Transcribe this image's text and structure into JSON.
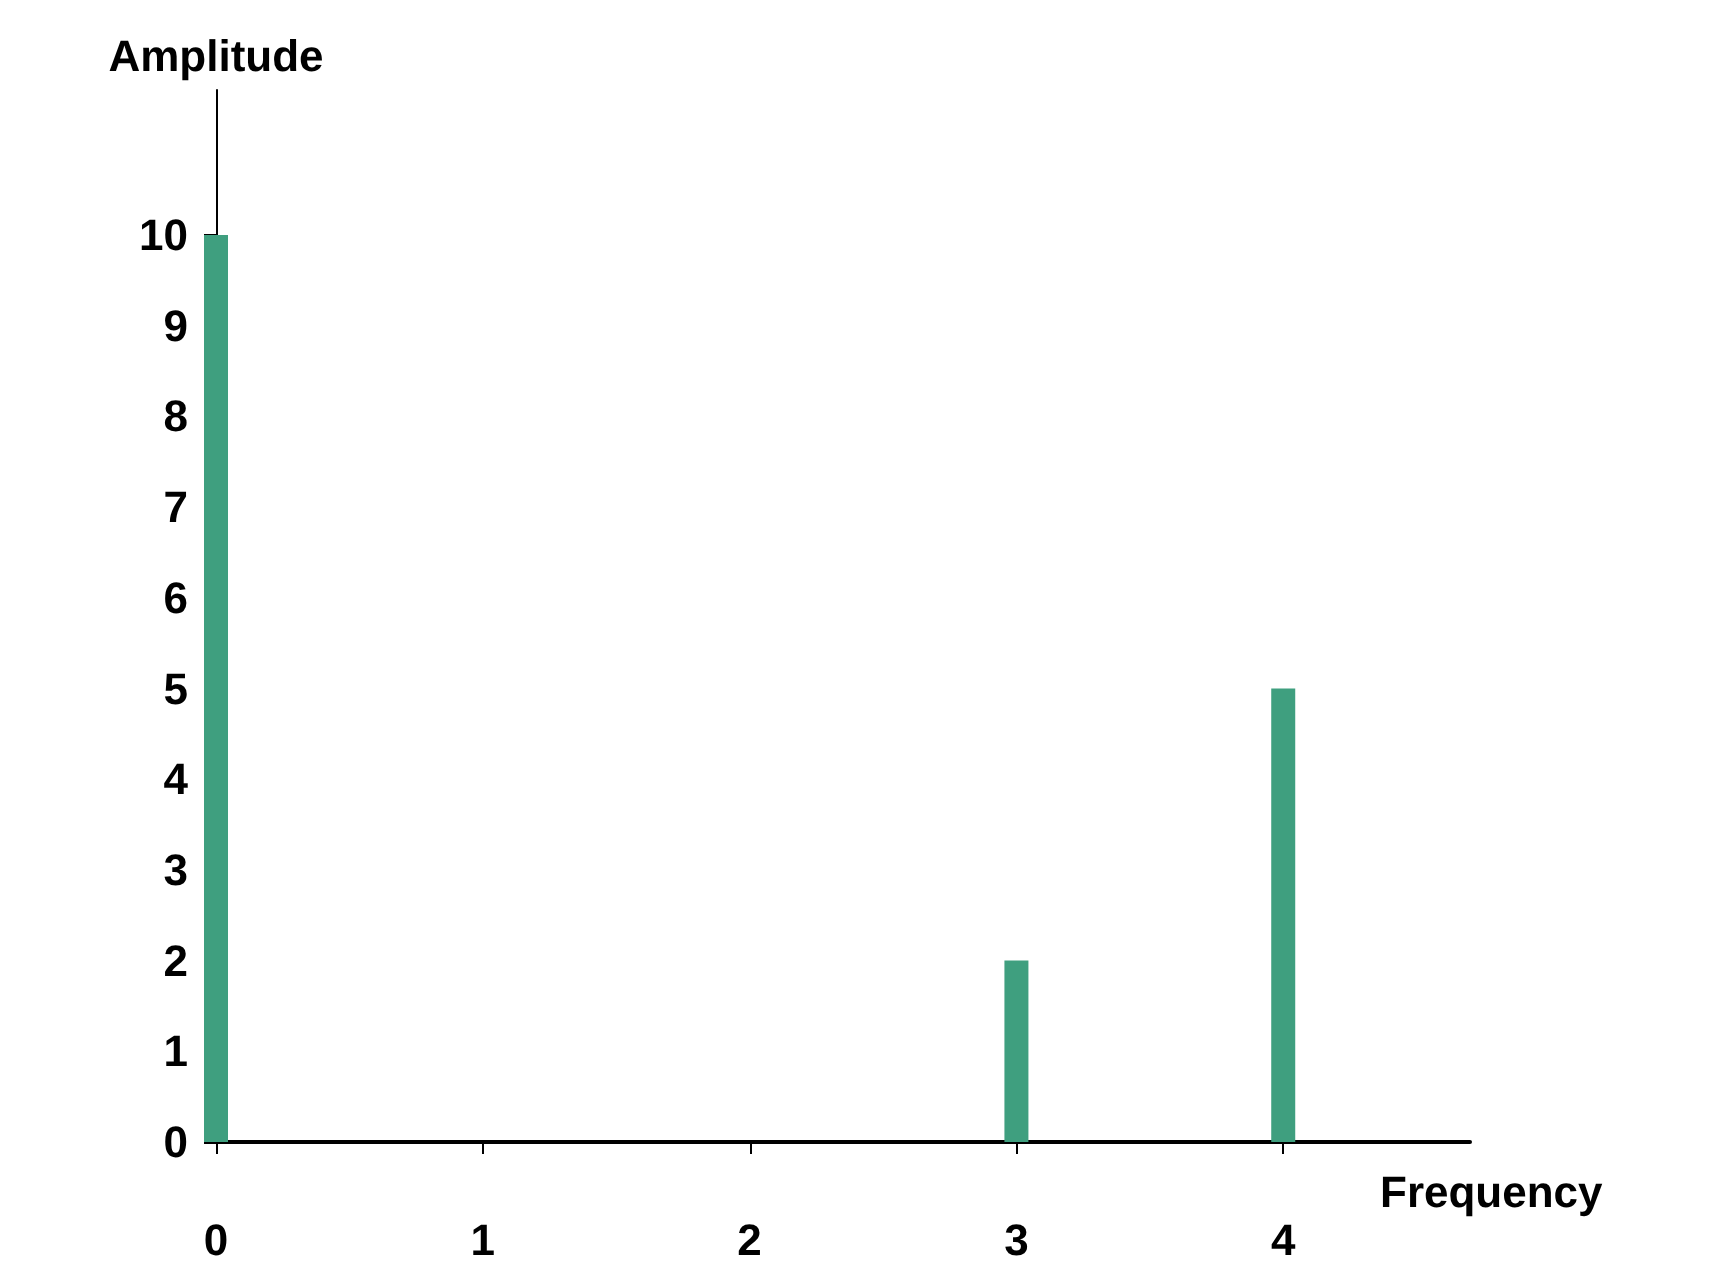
{
  "chart_data": {
    "type": "bar",
    "xlabel": "Frequency",
    "ylabel": "Amplitude",
    "x": [
      0,
      3,
      4
    ],
    "values": [
      10,
      2,
      5
    ],
    "color": "#3f9f7f",
    "xlim": [
      0,
      4.7
    ],
    "xticks": [
      0,
      1,
      2,
      3,
      4
    ],
    "ylim": [
      0,
      11.6
    ],
    "yticks": [
      0,
      1,
      2,
      3,
      4,
      5,
      6,
      7,
      8,
      9,
      10
    ],
    "grid": false
  }
}
